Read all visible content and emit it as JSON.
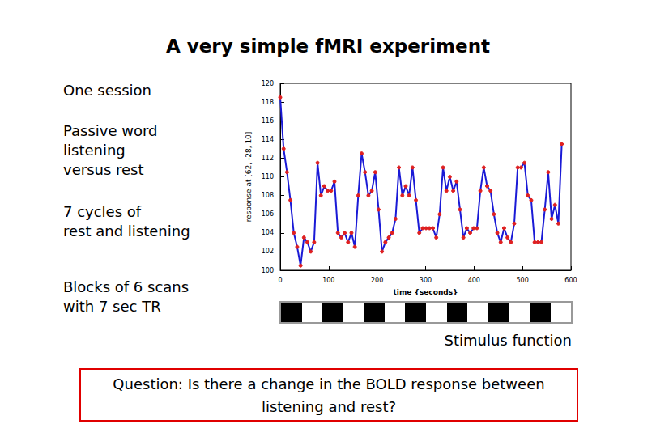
{
  "slide": {
    "title": "A very simple fMRI experiment",
    "notes": [
      [
        "One session"
      ],
      [
        "Passive word",
        "listening",
        "versus rest"
      ],
      [
        "7 cycles of",
        "rest and listening"
      ],
      [
        "Blocks of 6 scans",
        "with 7 sec TR"
      ]
    ],
    "question": [
      "Question: Is there a change in the BOLD response between",
      "listening and rest?"
    ]
  },
  "stimulus": {
    "label": "Stimulus function",
    "blocks": [
      1,
      0,
      1,
      0,
      1,
      0,
      1,
      0,
      1,
      0,
      1,
      0,
      1,
      0
    ]
  },
  "chart_data": {
    "type": "line",
    "x_label": "time {seconds}",
    "y_label": "response at [62, -28, 10]",
    "x": [
      0,
      7,
      14,
      21,
      28,
      35,
      42,
      49,
      56,
      63,
      70,
      77,
      84,
      91,
      98,
      105,
      112,
      119,
      126,
      133,
      140,
      147,
      154,
      161,
      168,
      175,
      182,
      189,
      196,
      203,
      210,
      217,
      224,
      231,
      238,
      245,
      252,
      259,
      266,
      273,
      280,
      287,
      294,
      301,
      308,
      315,
      322,
      329,
      336,
      343,
      350,
      357,
      364,
      371,
      378,
      385,
      392,
      399,
      406,
      413,
      420,
      427,
      434,
      441,
      448,
      455,
      462,
      469,
      476,
      483,
      490,
      497,
      504,
      511,
      518,
      525,
      532,
      539,
      546,
      553,
      560,
      567,
      574,
      581
    ],
    "values": [
      118.5,
      113.0,
      110.5,
      107.5,
      104.0,
      102.5,
      100.5,
      103.5,
      103.0,
      102.0,
      103.0,
      111.5,
      108.0,
      109.0,
      108.5,
      108.5,
      109.5,
      104.0,
      103.5,
      104.0,
      103.0,
      104.0,
      102.5,
      108.0,
      112.5,
      110.5,
      108.0,
      108.5,
      110.5,
      106.5,
      102.0,
      103.0,
      103.5,
      104.0,
      105.5,
      111.0,
      108.0,
      109.0,
      108.0,
      111.0,
      107.5,
      104.0,
      104.5,
      104.5,
      104.5,
      104.5,
      103.5,
      106.0,
      111.0,
      108.5,
      110.0,
      108.5,
      109.5,
      106.5,
      103.5,
      104.5,
      104.0,
      104.5,
      104.5,
      108.5,
      111.0,
      109.0,
      108.5,
      106.0,
      104.0,
      103.0,
      104.5,
      103.5,
      103.0,
      105.0,
      111.0,
      111.0,
      111.5,
      108.0,
      107.5,
      103.0,
      103.0,
      103.0,
      106.5,
      110.5,
      105.5,
      107.0,
      105.0,
      113.5
    ],
    "color": "#1a1ad6",
    "marker": "circle",
    "xlim": [
      0,
      600
    ],
    "xticks": [
      0,
      100,
      200,
      300,
      400,
      500,
      600
    ],
    "ylim": [
      100,
      120
    ],
    "yticks": [
      100,
      102,
      104,
      106,
      108,
      110,
      112,
      114,
      116,
      118,
      120
    ],
    "grid": false
  }
}
